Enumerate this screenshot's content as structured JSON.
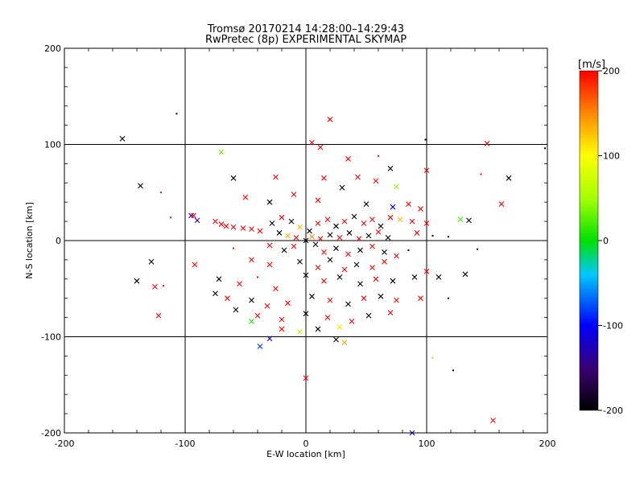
{
  "chart_data": {
    "type": "scatter",
    "title": "Tromsø 20170214 14:28:00–14:29:43",
    "subtitle": "RwPretec (8p) EXPERIMENTAL SKYMAP",
    "xlabel": "E-W location [km]",
    "ylabel": "N-S location [km]",
    "xlim": [
      -200,
      200
    ],
    "ylim": [
      -200,
      200
    ],
    "xticks": [
      -200,
      -100,
      0,
      100,
      200
    ],
    "yticks": [
      -200,
      -100,
      0,
      100,
      200
    ],
    "grid": true,
    "colorbar": {
      "label": "[m/s]",
      "min": -200,
      "max": 200,
      "ticks": [
        -200,
        -100,
        0,
        100,
        200
      ]
    },
    "points": [
      {
        "x": -152,
        "y": 106,
        "v": -200,
        "m": "x"
      },
      {
        "x": -107,
        "y": 132,
        "v": -200,
        "m": "d"
      },
      {
        "x": -137,
        "y": 57,
        "v": -200,
        "m": "x"
      },
      {
        "x": -70,
        "y": 92,
        "v": 40,
        "m": "x"
      },
      {
        "x": -60,
        "y": 65,
        "v": -200,
        "m": "x"
      },
      {
        "x": 20,
        "y": 126,
        "v": 200,
        "m": "x"
      },
      {
        "x": 5,
        "y": 102,
        "v": 200,
        "m": "x"
      },
      {
        "x": 12,
        "y": 97,
        "v": 200,
        "m": "x"
      },
      {
        "x": 99,
        "y": 105,
        "v": -200,
        "m": "d"
      },
      {
        "x": 150,
        "y": 101,
        "v": 200,
        "m": "x"
      },
      {
        "x": 198,
        "y": 96,
        "v": -200,
        "m": "d"
      },
      {
        "x": 35,
        "y": 85,
        "v": 200,
        "m": "x"
      },
      {
        "x": 60,
        "y": 88,
        "v": 200,
        "m": "d"
      },
      {
        "x": 70,
        "y": 75,
        "v": -200,
        "m": "x"
      },
      {
        "x": 100,
        "y": 73,
        "v": 200,
        "m": "x"
      },
      {
        "x": 168,
        "y": 65,
        "v": -200,
        "m": "x"
      },
      {
        "x": 145,
        "y": 69,
        "v": 200,
        "m": "d"
      },
      {
        "x": -25,
        "y": 66,
        "v": 200,
        "m": "x"
      },
      {
        "x": 15,
        "y": 65,
        "v": 200,
        "m": "x"
      },
      {
        "x": 43,
        "y": 66,
        "v": 200,
        "m": "x"
      },
      {
        "x": 58,
        "y": 62,
        "v": 200,
        "m": "x"
      },
      {
        "x": 75,
        "y": 56,
        "v": 40,
        "m": "x"
      },
      {
        "x": 30,
        "y": 55,
        "v": -200,
        "m": "x"
      },
      {
        "x": -120,
        "y": 50,
        "v": 200,
        "m": "d"
      },
      {
        "x": 162,
        "y": 38,
        "v": 200,
        "m": "x"
      },
      {
        "x": -50,
        "y": 45,
        "v": 200,
        "m": "x"
      },
      {
        "x": -10,
        "y": 48,
        "v": 200,
        "m": "x"
      },
      {
        "x": -30,
        "y": 40,
        "v": -200,
        "m": "x"
      },
      {
        "x": 10,
        "y": 42,
        "v": 200,
        "m": "x"
      },
      {
        "x": 50,
        "y": 38,
        "v": -200,
        "m": "x"
      },
      {
        "x": 72,
        "y": 35,
        "v": -110,
        "m": "x"
      },
      {
        "x": 85,
        "y": 38,
        "v": 200,
        "m": "x"
      },
      {
        "x": 95,
        "y": 33,
        "v": 200,
        "m": "x"
      },
      {
        "x": -95,
        "y": 26,
        "v": -120,
        "m": "x"
      },
      {
        "x": -90,
        "y": 21,
        "v": -120,
        "m": "x"
      },
      {
        "x": -112,
        "y": 24,
        "v": 200,
        "m": "d"
      },
      {
        "x": -93,
        "y": 26,
        "v": 200,
        "m": "x"
      },
      {
        "x": -75,
        "y": 20,
        "v": 200,
        "m": "x"
      },
      {
        "x": -70,
        "y": 17,
        "v": 200,
        "m": "x"
      },
      {
        "x": -66,
        "y": 15,
        "v": 200,
        "m": "x"
      },
      {
        "x": -60,
        "y": 14,
        "v": 200,
        "m": "x"
      },
      {
        "x": -52,
        "y": 13,
        "v": 200,
        "m": "x"
      },
      {
        "x": -45,
        "y": 12,
        "v": 200,
        "m": "x"
      },
      {
        "x": -38,
        "y": 10,
        "v": 200,
        "m": "x"
      },
      {
        "x": -28,
        "y": 18,
        "v": -200,
        "m": "x"
      },
      {
        "x": -20,
        "y": 24,
        "v": 200,
        "m": "x"
      },
      {
        "x": -12,
        "y": 20,
        "v": -200,
        "m": "x"
      },
      {
        "x": -5,
        "y": 14,
        "v": 130,
        "m": "x"
      },
      {
        "x": 3,
        "y": 10,
        "v": -200,
        "m": "x"
      },
      {
        "x": 10,
        "y": 18,
        "v": 200,
        "m": "x"
      },
      {
        "x": 18,
        "y": 22,
        "v": 200,
        "m": "x"
      },
      {
        "x": 25,
        "y": 15,
        "v": -200,
        "m": "x"
      },
      {
        "x": 32,
        "y": 20,
        "v": 200,
        "m": "x"
      },
      {
        "x": 40,
        "y": 25,
        "v": -200,
        "m": "x"
      },
      {
        "x": 48,
        "y": 18,
        "v": 200,
        "m": "x"
      },
      {
        "x": 55,
        "y": 22,
        "v": 200,
        "m": "x"
      },
      {
        "x": 62,
        "y": 15,
        "v": -200,
        "m": "x"
      },
      {
        "x": 70,
        "y": 24,
        "v": 200,
        "m": "x"
      },
      {
        "x": 78,
        "y": 22,
        "v": 130,
        "m": "x"
      },
      {
        "x": 88,
        "y": 20,
        "v": 200,
        "m": "x"
      },
      {
        "x": 100,
        "y": 18,
        "v": 200,
        "m": "x"
      },
      {
        "x": 128,
        "y": 22,
        "v": 20,
        "m": "x"
      },
      {
        "x": 135,
        "y": 21,
        "v": -200,
        "m": "x"
      },
      {
        "x": -22,
        "y": 8,
        "v": -200,
        "m": "x"
      },
      {
        "x": -15,
        "y": 5,
        "v": 130,
        "m": "x"
      },
      {
        "x": -8,
        "y": 3,
        "v": 200,
        "m": "x"
      },
      {
        "x": 0,
        "y": 0,
        "v": -200,
        "m": "x"
      },
      {
        "x": 5,
        "y": 4,
        "v": 150,
        "m": "x"
      },
      {
        "x": 12,
        "y": 2,
        "v": 200,
        "m": "x"
      },
      {
        "x": 20,
        "y": 6,
        "v": -200,
        "m": "x"
      },
      {
        "x": 28,
        "y": 3,
        "v": 200,
        "m": "x"
      },
      {
        "x": 36,
        "y": 8,
        "v": -200,
        "m": "x"
      },
      {
        "x": 44,
        "y": 2,
        "v": 200,
        "m": "x"
      },
      {
        "x": 52,
        "y": 5,
        "v": -200,
        "m": "x"
      },
      {
        "x": 60,
        "y": 9,
        "v": 200,
        "m": "x"
      },
      {
        "x": 68,
        "y": 3,
        "v": -200,
        "m": "x"
      },
      {
        "x": 92,
        "y": 8,
        "v": 200,
        "m": "x"
      },
      {
        "x": 105,
        "y": 5,
        "v": -200,
        "m": "d"
      },
      {
        "x": 118,
        "y": 4,
        "v": -200,
        "m": "d"
      },
      {
        "x": -60,
        "y": -8,
        "v": 200,
        "m": "d"
      },
      {
        "x": -30,
        "y": -5,
        "v": 200,
        "m": "x"
      },
      {
        "x": -18,
        "y": -10,
        "v": -200,
        "m": "x"
      },
      {
        "x": -10,
        "y": -6,
        "v": 200,
        "m": "x"
      },
      {
        "x": 8,
        "y": -4,
        "v": -200,
        "m": "x"
      },
      {
        "x": 15,
        "y": -12,
        "v": 200,
        "m": "x"
      },
      {
        "x": 25,
        "y": -8,
        "v": -200,
        "m": "x"
      },
      {
        "x": 35,
        "y": -14,
        "v": 200,
        "m": "x"
      },
      {
        "x": 45,
        "y": -10,
        "v": -200,
        "m": "x"
      },
      {
        "x": 55,
        "y": -6,
        "v": 200,
        "m": "x"
      },
      {
        "x": 65,
        "y": -12,
        "v": -200,
        "m": "x"
      },
      {
        "x": 75,
        "y": -16,
        "v": 200,
        "m": "x"
      },
      {
        "x": 85,
        "y": -10,
        "v": -200,
        "m": "d"
      },
      {
        "x": 142,
        "y": -9,
        "v": -200,
        "m": "d"
      },
      {
        "x": -128,
        "y": -22,
        "v": -200,
        "m": "x"
      },
      {
        "x": -92,
        "y": -25,
        "v": 200,
        "m": "x"
      },
      {
        "x": -45,
        "y": -20,
        "v": 200,
        "m": "x"
      },
      {
        "x": -30,
        "y": -25,
        "v": 200,
        "m": "x"
      },
      {
        "x": -5,
        "y": -22,
        "v": -200,
        "m": "x"
      },
      {
        "x": 10,
        "y": -28,
        "v": 200,
        "m": "x"
      },
      {
        "x": 20,
        "y": -20,
        "v": -200,
        "m": "x"
      },
      {
        "x": 32,
        "y": -30,
        "v": 200,
        "m": "x"
      },
      {
        "x": 42,
        "y": -25,
        "v": -200,
        "m": "x"
      },
      {
        "x": 55,
        "y": -28,
        "v": 200,
        "m": "x"
      },
      {
        "x": 65,
        "y": -22,
        "v": 200,
        "m": "x"
      },
      {
        "x": 100,
        "y": -32,
        "v": 200,
        "m": "x"
      },
      {
        "x": -140,
        "y": -42,
        "v": -200,
        "m": "x"
      },
      {
        "x": -125,
        "y": -48,
        "v": 200,
        "m": "x"
      },
      {
        "x": -118,
        "y": -47,
        "v": 200,
        "m": "d"
      },
      {
        "x": -72,
        "y": -40,
        "v": -200,
        "m": "x"
      },
      {
        "x": -55,
        "y": -45,
        "v": 200,
        "m": "x"
      },
      {
        "x": -40,
        "y": -38,
        "v": 200,
        "m": "d"
      },
      {
        "x": -25,
        "y": -50,
        "v": 200,
        "m": "x"
      },
      {
        "x": 0,
        "y": -36,
        "v": -200,
        "m": "x"
      },
      {
        "x": 15,
        "y": -42,
        "v": 200,
        "m": "x"
      },
      {
        "x": 28,
        "y": -38,
        "v": -200,
        "m": "x"
      },
      {
        "x": 45,
        "y": -45,
        "v": -200,
        "m": "x"
      },
      {
        "x": 58,
        "y": -40,
        "v": 200,
        "m": "x"
      },
      {
        "x": 72,
        "y": -42,
        "v": -200,
        "m": "x"
      },
      {
        "x": 90,
        "y": -38,
        "v": -200,
        "m": "x"
      },
      {
        "x": 110,
        "y": -38,
        "v": -200,
        "m": "x"
      },
      {
        "x": 132,
        "y": -35,
        "v": -200,
        "m": "x"
      },
      {
        "x": -75,
        "y": -55,
        "v": -200,
        "m": "x"
      },
      {
        "x": -65,
        "y": -60,
        "v": 200,
        "m": "x"
      },
      {
        "x": -45,
        "y": -62,
        "v": -200,
        "m": "x"
      },
      {
        "x": -32,
        "y": -68,
        "v": 200,
        "m": "x"
      },
      {
        "x": -15,
        "y": -65,
        "v": 200,
        "m": "x"
      },
      {
        "x": 5,
        "y": -58,
        "v": -200,
        "m": "x"
      },
      {
        "x": 20,
        "y": -62,
        "v": 200,
        "m": "x"
      },
      {
        "x": 35,
        "y": -66,
        "v": -200,
        "m": "x"
      },
      {
        "x": 48,
        "y": -60,
        "v": 200,
        "m": "x"
      },
      {
        "x": 62,
        "y": -58,
        "v": -200,
        "m": "x"
      },
      {
        "x": 75,
        "y": -62,
        "v": 200,
        "m": "x"
      },
      {
        "x": 95,
        "y": -60,
        "v": 200,
        "m": "x"
      },
      {
        "x": 118,
        "y": -60,
        "v": -200,
        "m": "d"
      },
      {
        "x": -58,
        "y": -72,
        "v": -200,
        "m": "x"
      },
      {
        "x": -40,
        "y": -78,
        "v": 200,
        "m": "x"
      },
      {
        "x": -20,
        "y": -82,
        "v": 200,
        "m": "x"
      },
      {
        "x": 0,
        "y": -76,
        "v": -200,
        "m": "x"
      },
      {
        "x": 18,
        "y": -80,
        "v": 200,
        "m": "x"
      },
      {
        "x": 38,
        "y": -84,
        "v": 200,
        "m": "x"
      },
      {
        "x": 52,
        "y": -78,
        "v": -200,
        "m": "x"
      },
      {
        "x": 70,
        "y": -75,
        "v": 200,
        "m": "x"
      },
      {
        "x": -122,
        "y": -78,
        "v": 200,
        "m": "x"
      },
      {
        "x": -45,
        "y": -84,
        "v": 10,
        "m": "x"
      },
      {
        "x": -20,
        "y": -92,
        "v": 200,
        "m": "x"
      },
      {
        "x": -5,
        "y": -95,
        "v": 60,
        "m": "x"
      },
      {
        "x": 10,
        "y": -92,
        "v": -200,
        "m": "x"
      },
      {
        "x": 28,
        "y": -90,
        "v": 110,
        "m": "x"
      },
      {
        "x": -30,
        "y": -102,
        "v": -120,
        "m": "x"
      },
      {
        "x": -38,
        "y": -110,
        "v": -80,
        "m": "x"
      },
      {
        "x": 32,
        "y": -106,
        "v": 140,
        "m": "x"
      },
      {
        "x": 25,
        "y": -103,
        "v": -200,
        "m": "x"
      },
      {
        "x": 105,
        "y": -122,
        "v": 40,
        "m": "d"
      },
      {
        "x": 122,
        "y": -135,
        "v": -200,
        "m": "d"
      },
      {
        "x": 0,
        "y": -143,
        "v": 200,
        "m": "x"
      },
      {
        "x": 155,
        "y": -187,
        "v": 200,
        "m": "x"
      },
      {
        "x": 88,
        "y": -200,
        "v": -120,
        "m": "x"
      }
    ]
  }
}
